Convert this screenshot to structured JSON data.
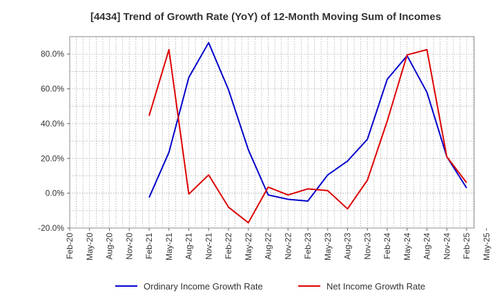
{
  "chart_data": {
    "type": "line",
    "title": "[4434]  Trend of Growth Rate (YoY) of 12-Month Moving Sum of Incomes",
    "xlabel": "",
    "ylabel": "",
    "ylim": [
      -20,
      90
    ],
    "y_ticks": [
      80,
      60,
      40,
      20,
      0,
      -20
    ],
    "y_tick_labels": [
      "80.0%",
      "60.0%",
      "40.0%",
      "20.0%",
      "0.0%",
      "-20.0%"
    ],
    "x_ticks": [
      "Feb-20",
      "May-20",
      "Aug-20",
      "Nov-20",
      "Feb-21",
      "May-21",
      "Aug-21",
      "Nov-21",
      "Feb-22",
      "May-22",
      "Aug-22",
      "Nov-22",
      "Feb-23",
      "May-23",
      "Aug-23",
      "Nov-23",
      "Feb-24",
      "May-24",
      "Aug-24",
      "Nov-24",
      "Feb-25",
      "May-25"
    ],
    "grid": true,
    "legend_position": "bottom",
    "series": [
      {
        "name": "Ordinary Income Growth Rate",
        "color": "#0000cc",
        "points": [
          [
            "Feb-21",
            -2.5
          ],
          [
            "May-21",
            23.5
          ],
          [
            "Aug-21",
            66.5
          ],
          [
            "Nov-21",
            86.5
          ],
          [
            "Feb-22",
            59.5
          ],
          [
            "May-22",
            25.0
          ],
          [
            "Aug-22",
            -1.0
          ],
          [
            "Nov-22",
            -3.5
          ],
          [
            "Feb-23",
            -4.5
          ],
          [
            "May-23",
            10.5
          ],
          [
            "Aug-23",
            18.5
          ],
          [
            "Nov-23",
            31.0
          ],
          [
            "Feb-24",
            65.5
          ],
          [
            "May-24",
            79.0
          ],
          [
            "Aug-24",
            58.0
          ],
          [
            "Nov-24",
            21.0
          ],
          [
            "Feb-25",
            3.0
          ]
        ]
      },
      {
        "name": "Net Income Growth Rate",
        "color": "#dd0000",
        "points": [
          [
            "Feb-21",
            44.5
          ],
          [
            "May-21",
            82.5
          ],
          [
            "Aug-21",
            -0.5
          ],
          [
            "Nov-21",
            10.5
          ],
          [
            "Feb-22",
            -8.0
          ],
          [
            "May-22",
            -17.0
          ],
          [
            "Aug-22",
            3.5
          ],
          [
            "Nov-22",
            -1.0
          ],
          [
            "Feb-23",
            2.5
          ],
          [
            "May-23",
            1.5
          ],
          [
            "Aug-23",
            -9.0
          ],
          [
            "Nov-23",
            7.5
          ],
          [
            "Feb-24",
            41.5
          ],
          [
            "May-24",
            79.5
          ],
          [
            "Aug-24",
            82.5
          ],
          [
            "Nov-24",
            21.0
          ],
          [
            "Feb-25",
            6.0
          ]
        ]
      }
    ]
  }
}
